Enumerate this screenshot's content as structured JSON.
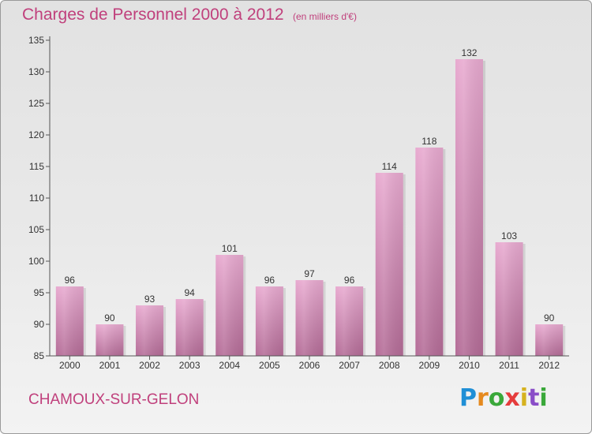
{
  "header": {
    "title": "Charges de Personnel 2000 à 2012",
    "subtitle": "(en milliers d'€)"
  },
  "footer": {
    "commune": "CHAMOUX-SUR-GELON",
    "logo_letters": [
      "P",
      "r",
      "o",
      "x",
      "i",
      "t",
      "i"
    ]
  },
  "colors": {
    "accent": "#c0407c",
    "bar_light": "#e6a7cc",
    "bar_dark": "#b06a94"
  },
  "chart_data": {
    "type": "bar",
    "title": "Charges de Personnel 2000 à 2012",
    "subtitle": "(en milliers d'€)",
    "xlabel": "",
    "ylabel": "",
    "categories": [
      "2000",
      "2001",
      "2002",
      "2003",
      "2004",
      "2005",
      "2006",
      "2007",
      "2008",
      "2009",
      "2010",
      "2011",
      "2012"
    ],
    "values": [
      96,
      90,
      93,
      94,
      101,
      96,
      97,
      96,
      114,
      118,
      132,
      103,
      90
    ],
    "ylim": [
      85,
      135
    ],
    "yticks": [
      85,
      90,
      95,
      100,
      105,
      110,
      115,
      120,
      125,
      130,
      135
    ],
    "grid": false,
    "legend": "none"
  }
}
